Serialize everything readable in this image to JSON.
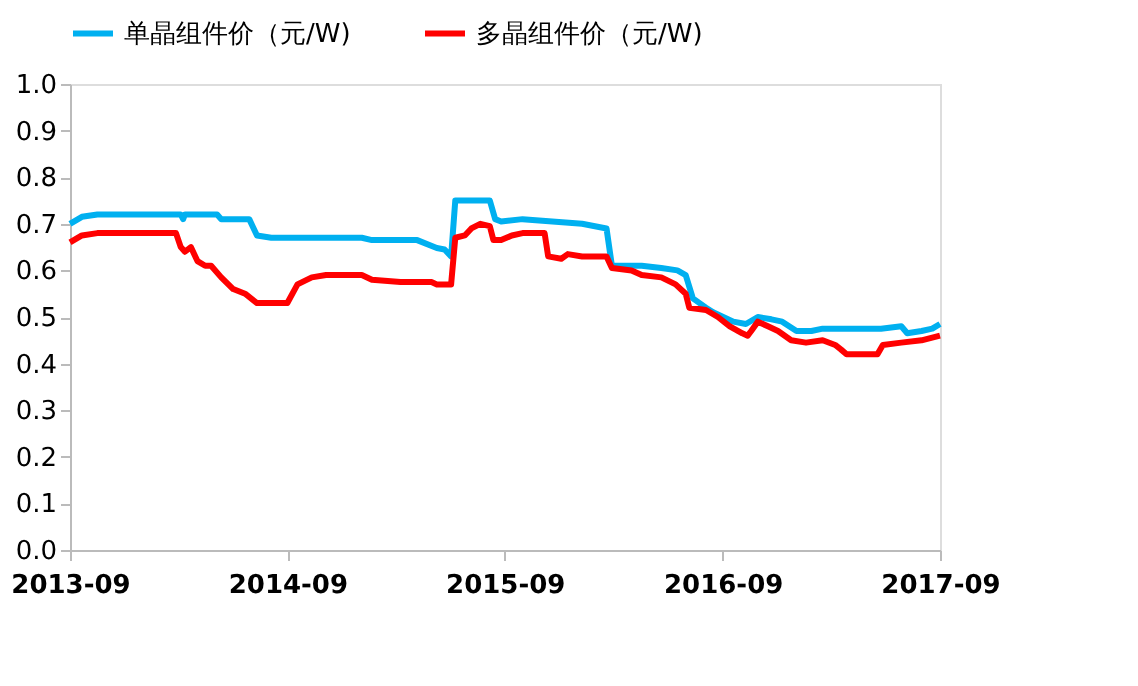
{
  "chart_data": {
    "type": "line",
    "xlim": [
      "2013-09-01",
      "2017-09-01"
    ],
    "xticks": [
      "2013-09",
      "2014-09",
      "2015-09",
      "2016-09",
      "2017-09"
    ],
    "ylim": [
      0,
      1.0
    ],
    "yticks": [
      {
        "value": 0,
        "label": "0.0"
      },
      {
        "value": 0.1,
        "label": "0.1"
      },
      {
        "value": 0.2,
        "label": "0.2"
      },
      {
        "value": 0.3,
        "label": "0.3"
      },
      {
        "value": 0.4,
        "label": "0.4"
      },
      {
        "value": 0.5,
        "label": "0.5"
      },
      {
        "value": 0.6,
        "label": "0.6"
      },
      {
        "value": 0.7,
        "label": "0.7"
      },
      {
        "value": 0.8,
        "label": "0.8"
      },
      {
        "value": 0.9,
        "label": "0.9"
      },
      {
        "value": 1,
        "label": "1.0"
      }
    ],
    "grid": false,
    "legend": "top",
    "line_style": "solid",
    "marker": "none",
    "series": [
      {
        "name": "单晶组件价（元/W)",
        "color": "#00b0f0",
        "x": [
          "2013-09-01",
          "2013-09-21",
          "2013-10-17",
          "2014-03-06",
          "2014-03-10",
          "2014-03-13",
          "2014-05-06",
          "2014-05-13",
          "2014-06-29",
          "2014-07-12",
          "2014-08-05",
          "2015-01-04",
          "2015-01-21",
          "2015-04-07",
          "2015-05-10",
          "2015-05-23",
          "2015-06-03",
          "2015-06-10",
          "2015-08-07",
          "2015-08-16",
          "2015-08-26",
          "2015-10-01",
          "2016-01-09",
          "2016-02-19",
          "2016-02-28",
          "2016-04-18",
          "2016-05-21",
          "2016-06-17",
          "2016-07-01",
          "2016-07-13",
          "2016-08-04",
          "2016-08-16",
          "2016-09-19",
          "2016-10-10",
          "2016-10-30",
          "2016-11-22",
          "2016-12-10",
          "2017-01-03",
          "2017-01-28",
          "2017-02-16",
          "2017-05-25",
          "2017-06-28",
          "2017-07-08",
          "2017-08-01",
          "2017-08-19",
          "2017-09-01"
        ],
        "values": [
          0.7,
          0.715,
          0.72,
          0.72,
          0.71,
          0.72,
          0.72,
          0.71,
          0.71,
          0.675,
          0.67,
          0.67,
          0.665,
          0.665,
          0.648,
          0.645,
          0.63,
          0.75,
          0.75,
          0.71,
          0.705,
          0.71,
          0.7,
          0.69,
          0.61,
          0.61,
          0.605,
          0.6,
          0.59,
          0.54,
          0.52,
          0.51,
          0.49,
          0.485,
          0.5,
          0.495,
          0.49,
          0.47,
          0.47,
          0.475,
          0.475,
          0.48,
          0.465,
          0.47,
          0.475,
          0.485
        ]
      },
      {
        "name": "多晶组件价（元/W)",
        "color": "#ff0000",
        "x": [
          "2013-09-01",
          "2013-09-21",
          "2013-10-17",
          "2014-02-26",
          "2014-03-06",
          "2014-03-13",
          "2014-03-23",
          "2014-04-03",
          "2014-04-16",
          "2014-04-26",
          "2014-05-13",
          "2014-06-02",
          "2014-06-22",
          "2014-07-12",
          "2014-09-01",
          "2014-09-18",
          "2014-10-12",
          "2014-11-05",
          "2015-01-04",
          "2015-01-21",
          "2015-03-10",
          "2015-05-01",
          "2015-05-10",
          "2015-06-03",
          "2015-06-10",
          "2015-06-26",
          "2015-07-07",
          "2015-07-22",
          "2015-08-07",
          "2015-08-13",
          "2015-08-26",
          "2015-09-13",
          "2015-10-01",
          "2015-11-07",
          "2015-11-13",
          "2015-12-05",
          "2015-12-16",
          "2016-01-09",
          "2016-02-19",
          "2016-02-28",
          "2016-04-01",
          "2016-04-18",
          "2016-05-21",
          "2016-06-14",
          "2016-07-01",
          "2016-07-07",
          "2016-08-04",
          "2016-08-24",
          "2016-09-13",
          "2016-10-04",
          "2016-10-13",
          "2016-10-19",
          "2016-10-30",
          "2016-11-16",
          "2016-12-03",
          "2016-12-25",
          "2017-01-19",
          "2017-02-16",
          "2017-03-09",
          "2017-03-19",
          "2017-03-28",
          "2017-05-19",
          "2017-05-28",
          "2017-06-28",
          "2017-08-01",
          "2017-09-01"
        ],
        "values": [
          0.66,
          0.675,
          0.68,
          0.68,
          0.65,
          0.64,
          0.65,
          0.62,
          0.61,
          0.61,
          0.585,
          0.56,
          0.55,
          0.53,
          0.53,
          0.57,
          0.585,
          0.59,
          0.59,
          0.58,
          0.575,
          0.575,
          0.57,
          0.57,
          0.67,
          0.675,
          0.69,
          0.7,
          0.695,
          0.665,
          0.665,
          0.675,
          0.68,
          0.68,
          0.63,
          0.625,
          0.635,
          0.63,
          0.63,
          0.605,
          0.6,
          0.59,
          0.585,
          0.57,
          0.55,
          0.52,
          0.515,
          0.5,
          0.48,
          0.465,
          0.46,
          0.47,
          0.49,
          0.48,
          0.47,
          0.45,
          0.445,
          0.45,
          0.44,
          0.43,
          0.42,
          0.42,
          0.44,
          0.445,
          0.45,
          0.46
        ]
      }
    ]
  }
}
